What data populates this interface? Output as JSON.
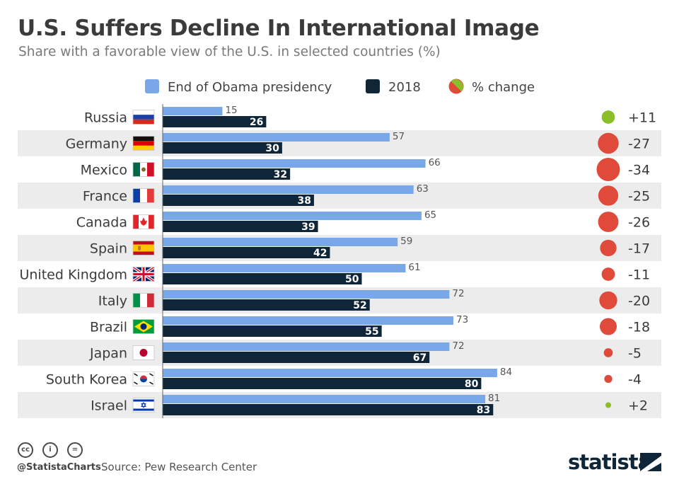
{
  "header": {
    "title": "U.S. Suffers Decline In International Image",
    "subtitle": "Share with a favorable view of the U.S. in selected countries (%)"
  },
  "colors": {
    "obama": "#79a8e8",
    "y2018": "#0f2638",
    "positive": "#8cbe2a",
    "negative": "#e04a3a",
    "stripe": "#ececec"
  },
  "chart_data": {
    "type": "bar",
    "orientation": "horizontal",
    "legend": {
      "placement": "top",
      "items": [
        "End of Obama presidency",
        "2018",
        "% change"
      ]
    },
    "categories": [
      "Russia",
      "Germany",
      "Mexico",
      "France",
      "Canada",
      "Spain",
      "United Kingdom",
      "Italy",
      "Brazil",
      "Japan",
      "South Korea",
      "Israel"
    ],
    "series": [
      {
        "name": "End of Obama presidency",
        "values": [
          15,
          57,
          66,
          63,
          65,
          59,
          61,
          72,
          73,
          72,
          84,
          81
        ]
      },
      {
        "name": "2018",
        "values": [
          26,
          30,
          32,
          38,
          39,
          42,
          50,
          52,
          55,
          67,
          80,
          83
        ]
      }
    ],
    "change_values": [
      11,
      -27,
      -34,
      -25,
      -26,
      -17,
      -11,
      -20,
      -18,
      -5,
      -4,
      2
    ],
    "change_labels": [
      "+11",
      "-27",
      "-34",
      "-25",
      "-26",
      "-17",
      "-11",
      "-20",
      "-18",
      "-5",
      "-4",
      "+2"
    ],
    "flag_icons": [
      "russia-flag-icon",
      "germany-flag-icon",
      "mexico-flag-icon",
      "france-flag-icon",
      "canada-flag-icon",
      "spain-flag-icon",
      "united-kingdom-flag-icon",
      "italy-flag-icon",
      "brazil-flag-icon",
      "japan-flag-icon",
      "south-korea-flag-icon",
      "israel-flag-icon"
    ],
    "xlim": [
      0,
      100
    ],
    "grid": false
  },
  "footer": {
    "handle": "@StatistaCharts",
    "source": "Source: Pew Research Center",
    "brand": "statista",
    "license_icons": [
      "cc-icon",
      "by-icon",
      "nd-icon"
    ],
    "license_glyphs": [
      "cc",
      "i",
      "="
    ]
  }
}
